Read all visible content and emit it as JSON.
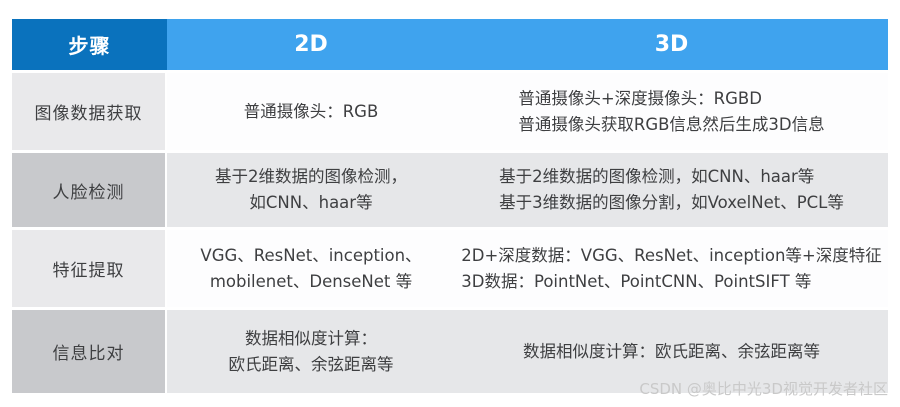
{
  "table": {
    "header": {
      "step": "步骤",
      "col_2d": "2D",
      "col_3d": "3D"
    },
    "rows": [
      {
        "label": "图像数据获取",
        "c2d": [
          "普通摄像头：RGB"
        ],
        "c3d": [
          "普通摄像头+深度摄像头：RGBD",
          "普通摄像头获取RGB信息然后生成3D信息"
        ]
      },
      {
        "label": "人脸检测",
        "c2d": [
          "基于2维数据的图像检测，",
          "如CNN、haar等"
        ],
        "c3d": [
          "基于2维数据的图像检测，如CNN、haar等",
          "基于3维数据的图像分割，如VoxelNet、PCL等"
        ]
      },
      {
        "label": "特征提取",
        "c2d": [
          "VGG、ResNet、inception、",
          "mobilenet、DenseNet 等"
        ],
        "c3d": [
          "2D+深度数据：VGG、ResNet、inception等+深度特征",
          "3D数据：PointNet、PointCNN、PointSIFT 等"
        ]
      },
      {
        "label": "信息比对",
        "c2d": [
          "数据相似度计算：",
          "欧氏距离、余弦距离等"
        ],
        "c3d": [
          "数据相似度计算：欧氏距离、余弦距离等"
        ]
      }
    ]
  },
  "watermark": "CSDN @奥比中光3D视觉开发者社区",
  "colors": {
    "header_step_bg": "#0a72bd",
    "header_bg": "#3fa3ee",
    "label_light": "#e9e9eb",
    "label_dark": "#c8c9cc",
    "content_light": "#fdfdfe",
    "content_dark": "#e6e7e9",
    "text": "#3e3f41",
    "watermark": "#c9c9c9"
  }
}
